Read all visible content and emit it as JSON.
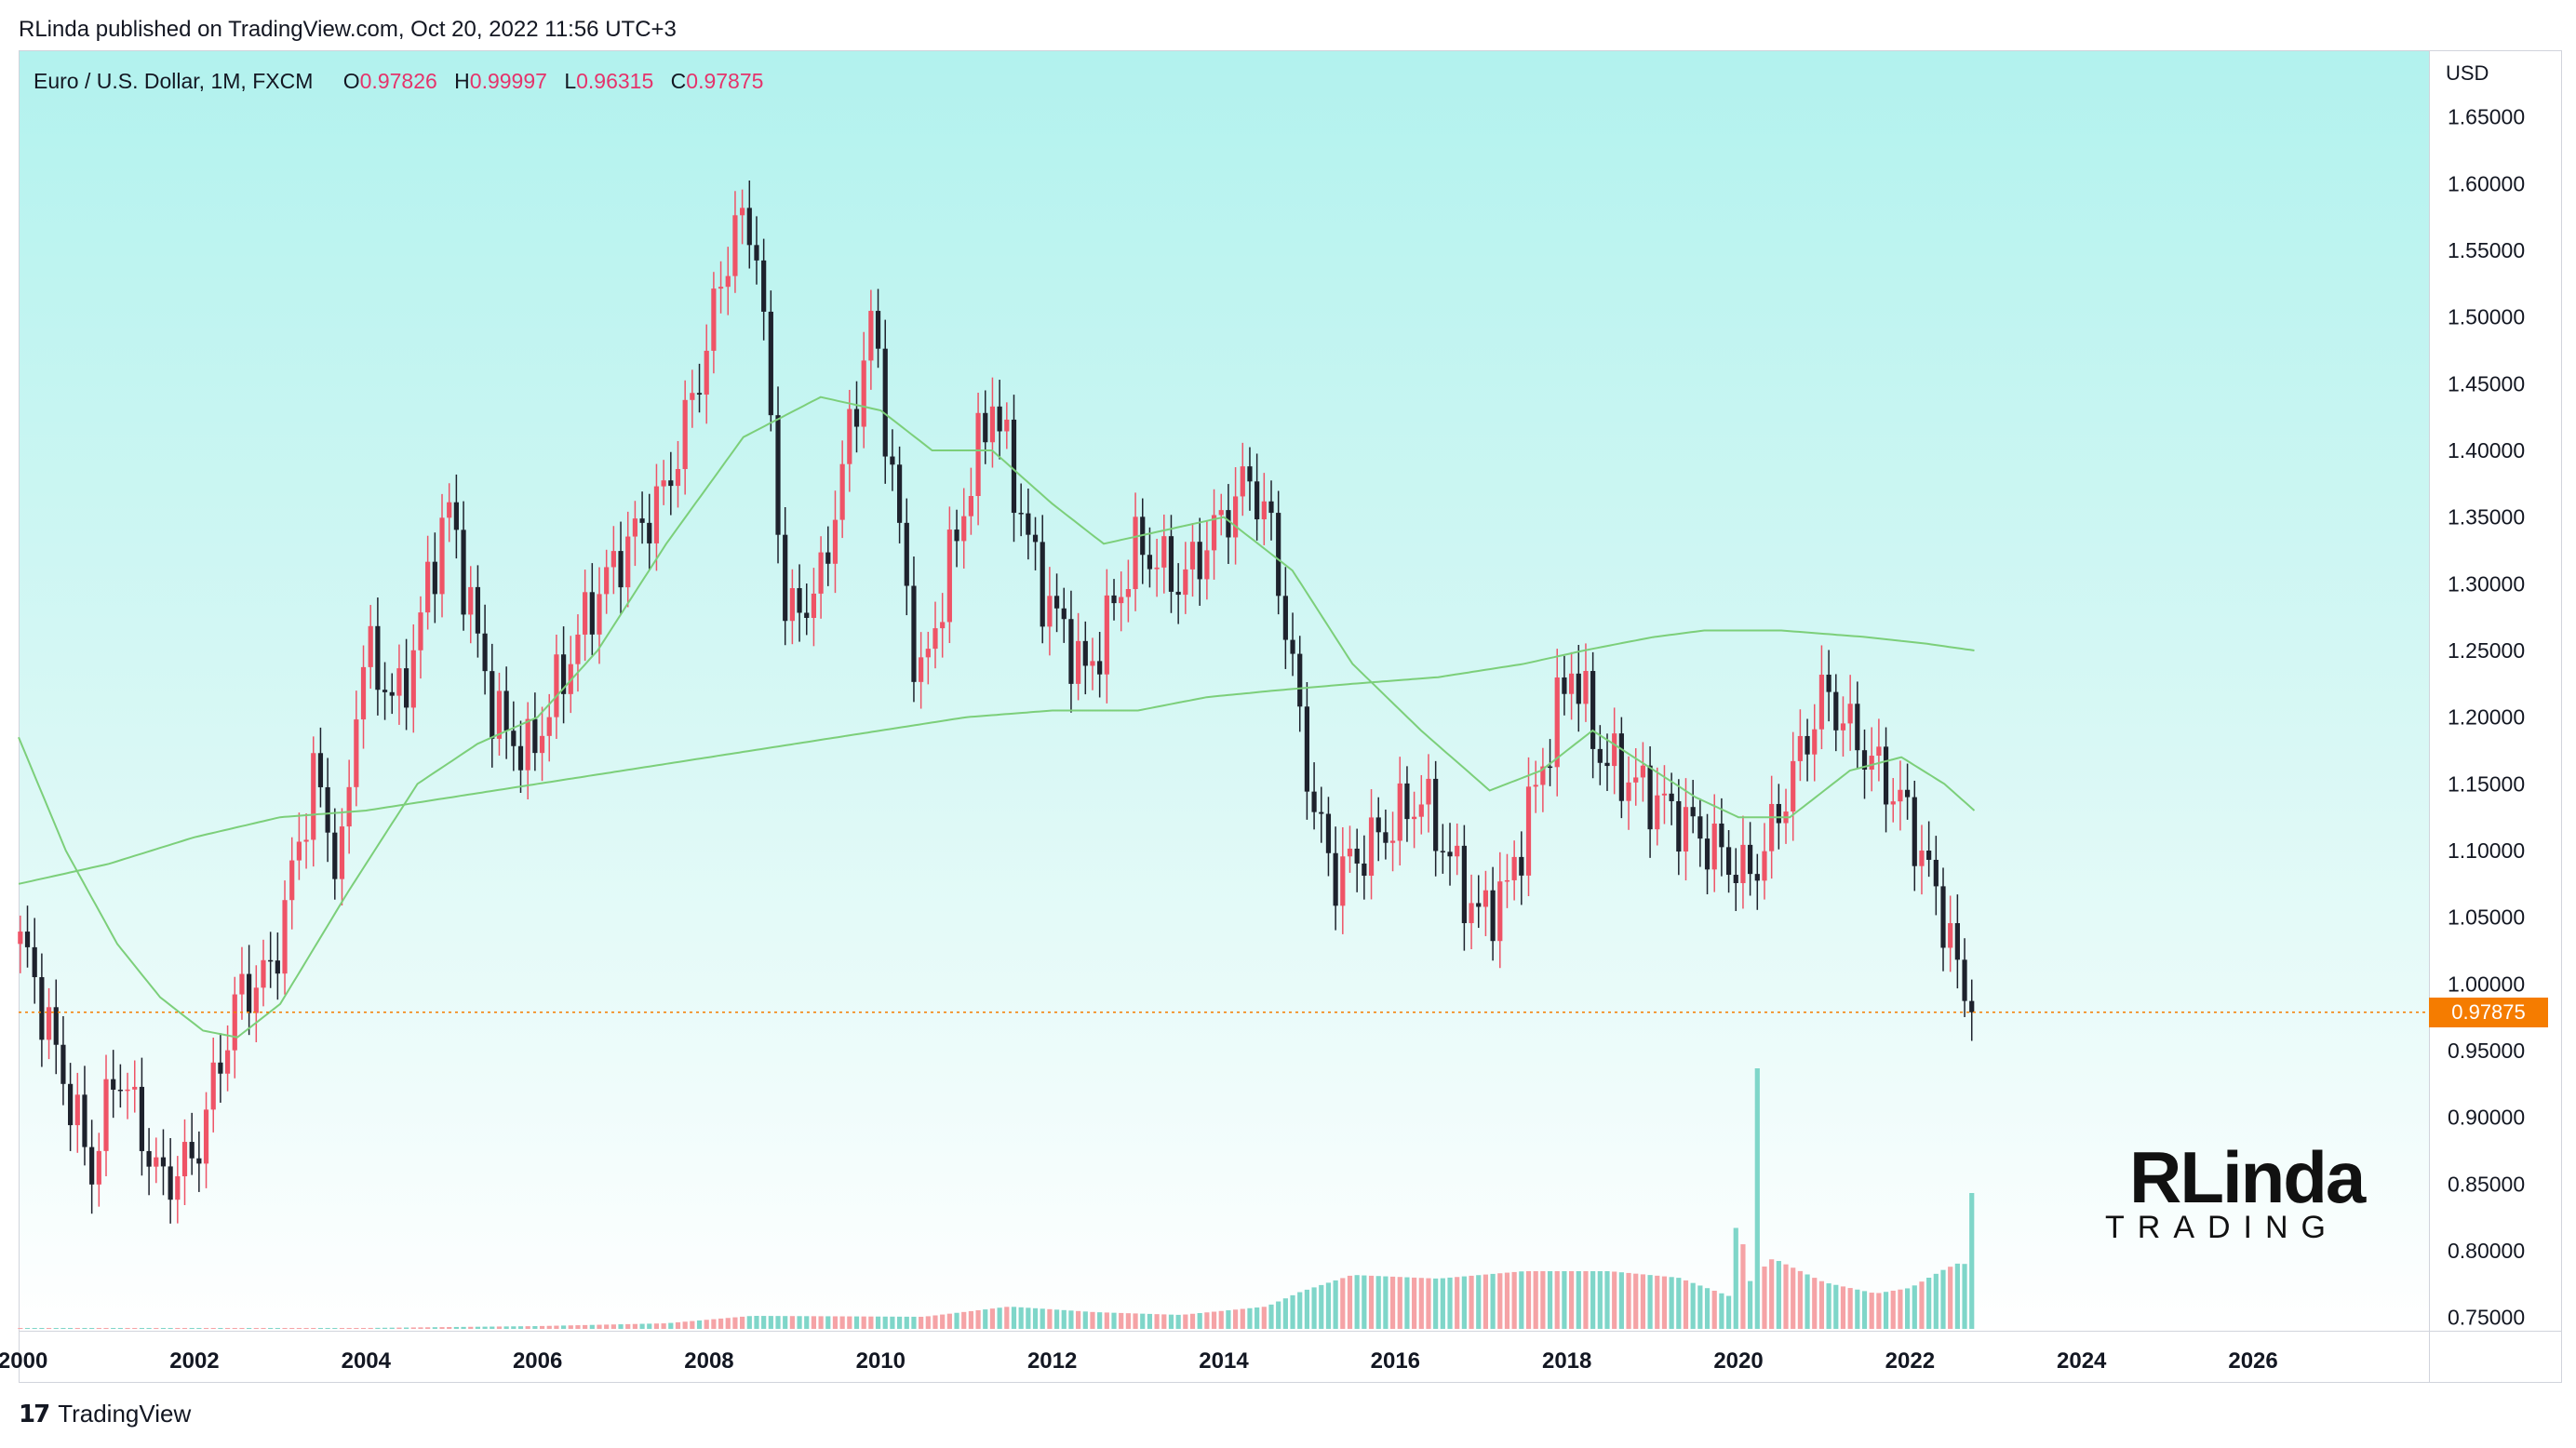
{
  "header": {
    "published_line": "RLinda published on TradingView.com, Oct 20, 2022 11:56 UTC+3"
  },
  "legend": {
    "symbol": "Euro / U.S. Dollar, 1M, FXCM",
    "o_label": "O",
    "o_value": "0.97826",
    "h_label": "H",
    "h_value": "0.99997",
    "l_label": "L",
    "l_value": "0.96315",
    "c_label": "C",
    "c_value": "0.97875"
  },
  "axis": {
    "currency": "USD",
    "current_price": "0.97875"
  },
  "footer": {
    "brand": "TradingView",
    "icon": "tradingview-logo-icon"
  },
  "watermark": {
    "line1": "RLinda",
    "line2": "TRADING"
  },
  "colors": {
    "up": "#ef5366",
    "down": "#1e222d",
    "ma": "#7ccf7a",
    "vol_up": "#f5a3a6",
    "vol_down": "#7fd6c9",
    "price_line": "#f57c00"
  },
  "chart_data": {
    "type": "candlestick",
    "title": "Euro / U.S. Dollar, 1M, FXCM",
    "ylabel": "USD",
    "ylim": [
      0.74,
      1.7
    ],
    "y_ticks": [
      "0.75000",
      "0.80000",
      "0.85000",
      "0.90000",
      "0.95000",
      "1.00000",
      "1.05000",
      "1.10000",
      "1.15000",
      "1.20000",
      "1.25000",
      "1.30000",
      "1.35000",
      "1.40000",
      "1.45000",
      "1.50000",
      "1.55000",
      "1.60000",
      "1.65000"
    ],
    "x_ticks": [
      "2000",
      "2002",
      "2004",
      "2006",
      "2008",
      "2010",
      "2012",
      "2014",
      "2016",
      "2018",
      "2020",
      "2022",
      "2024",
      "2026"
    ],
    "xlim": [
      1999.95,
      2028.05
    ],
    "close_anchors": [
      [
        2000.0,
        1.03
      ],
      [
        2000.8,
        0.86
      ],
      [
        2001.1,
        0.94
      ],
      [
        2001.6,
        0.85
      ],
      [
        2002.0,
        0.87
      ],
      [
        2002.5,
        0.99
      ],
      [
        2002.9,
        1.01
      ],
      [
        2003.4,
        1.16
      ],
      [
        2003.7,
        1.08
      ],
      [
        2003.95,
        1.25
      ],
      [
        2004.4,
        1.21
      ],
      [
        2004.95,
        1.36
      ],
      [
        2005.5,
        1.2
      ],
      [
        2005.9,
        1.17
      ],
      [
        2006.6,
        1.28
      ],
      [
        2006.95,
        1.32
      ],
      [
        2007.5,
        1.37
      ],
      [
        2007.9,
        1.46
      ],
      [
        2008.3,
        1.57
      ],
      [
        2008.55,
        1.56
      ],
      [
        2008.9,
        1.27
      ],
      [
        2009.3,
        1.3
      ],
      [
        2009.9,
        1.5
      ],
      [
        2010.45,
        1.22
      ],
      [
        2010.9,
        1.34
      ],
      [
        2011.3,
        1.44
      ],
      [
        2011.85,
        1.3
      ],
      [
        2012.4,
        1.23
      ],
      [
        2013.0,
        1.33
      ],
      [
        2013.5,
        1.3
      ],
      [
        2014.3,
        1.38
      ],
      [
        2014.55,
        1.34
      ],
      [
        2015.05,
        1.13
      ],
      [
        2015.3,
        1.08
      ],
      [
        2016.3,
        1.14
      ],
      [
        2016.95,
        1.05
      ],
      [
        2017.3,
        1.07
      ],
      [
        2018.05,
        1.24
      ],
      [
        2018.4,
        1.17
      ],
      [
        2019.4,
        1.12
      ],
      [
        2020.1,
        1.08
      ],
      [
        2020.3,
        1.1
      ],
      [
        2021.0,
        1.22
      ],
      [
        2021.3,
        1.19
      ],
      [
        2021.95,
        1.13
      ],
      [
        2022.4,
        1.05
      ],
      [
        2022.67,
        0.98
      ],
      [
        2022.8,
        0.97875
      ]
    ],
    "ma_fast": [
      [
        1999.95,
        1.185
      ],
      [
        2000.5,
        1.1
      ],
      [
        2001.1,
        1.03
      ],
      [
        2001.6,
        0.99
      ],
      [
        2002.1,
        0.965
      ],
      [
        2002.5,
        0.96
      ],
      [
        2003.0,
        0.985
      ],
      [
        2003.8,
        1.07
      ],
      [
        2004.6,
        1.15
      ],
      [
        2005.3,
        1.18
      ],
      [
        2006.0,
        1.2
      ],
      [
        2006.7,
        1.25
      ],
      [
        2007.5,
        1.33
      ],
      [
        2008.4,
        1.41
      ],
      [
        2009.3,
        1.44
      ],
      [
        2010.0,
        1.43
      ],
      [
        2010.6,
        1.4
      ],
      [
        2011.3,
        1.4
      ],
      [
        2012.0,
        1.36
      ],
      [
        2012.6,
        1.33
      ],
      [
        2013.3,
        1.34
      ],
      [
        2014.0,
        1.35
      ],
      [
        2014.8,
        1.31
      ],
      [
        2015.5,
        1.24
      ],
      [
        2016.3,
        1.19
      ],
      [
        2017.1,
        1.145
      ],
      [
        2017.7,
        1.16
      ],
      [
        2018.3,
        1.19
      ],
      [
        2018.9,
        1.165
      ],
      [
        2019.5,
        1.14
      ],
      [
        2020.0,
        1.125
      ],
      [
        2020.6,
        1.125
      ],
      [
        2021.3,
        1.16
      ],
      [
        2021.9,
        1.17
      ],
      [
        2022.4,
        1.15
      ],
      [
        2022.75,
        1.13
      ]
    ],
    "ma_slow": [
      [
        1999.95,
        1.075
      ],
      [
        2001.0,
        1.09
      ],
      [
        2002.0,
        1.11
      ],
      [
        2003.0,
        1.125
      ],
      [
        2004.0,
        1.13
      ],
      [
        2005.0,
        1.14
      ],
      [
        2006.0,
        1.15
      ],
      [
        2007.0,
        1.16
      ],
      [
        2008.0,
        1.17
      ],
      [
        2009.0,
        1.18
      ],
      [
        2010.0,
        1.19
      ],
      [
        2011.0,
        1.2
      ],
      [
        2012.0,
        1.205
      ],
      [
        2013.0,
        1.205
      ],
      [
        2013.8,
        1.215
      ],
      [
        2014.6,
        1.22
      ],
      [
        2015.5,
        1.225
      ],
      [
        2016.5,
        1.23
      ],
      [
        2017.5,
        1.24
      ],
      [
        2018.2,
        1.25
      ],
      [
        2019.0,
        1.26
      ],
      [
        2019.6,
        1.265
      ],
      [
        2020.5,
        1.265
      ],
      [
        2021.5,
        1.26
      ],
      [
        2022.2,
        1.255
      ],
      [
        2022.75,
        1.25
      ]
    ],
    "volume_anchors": [
      [
        2000.0,
        1
      ],
      [
        2004.0,
        1
      ],
      [
        2006.0,
        3
      ],
      [
        2007.5,
        6
      ],
      [
        2008.5,
        14
      ],
      [
        2010.5,
        13
      ],
      [
        2011.5,
        24
      ],
      [
        2012.5,
        18
      ],
      [
        2013.5,
        15
      ],
      [
        2014.5,
        24
      ],
      [
        2014.9,
        40
      ],
      [
        2015.5,
        58
      ],
      [
        2016.5,
        54
      ],
      [
        2017.5,
        62
      ],
      [
        2018.5,
        62
      ],
      [
        2019.3,
        55
      ],
      [
        2019.9,
        35
      ],
      [
        2020.0,
        140
      ],
      [
        2020.1,
        48
      ],
      [
        2020.4,
        76
      ],
      [
        2021.0,
        50
      ],
      [
        2021.6,
        38
      ],
      [
        2022.0,
        44
      ],
      [
        2022.4,
        64
      ],
      [
        2022.6,
        72
      ],
      [
        2022.7,
        66
      ]
    ],
    "volume_spikes": [
      [
        2020.22,
        280
      ],
      [
        2022.72,
        146
      ]
    ],
    "current_price": 0.97875
  }
}
